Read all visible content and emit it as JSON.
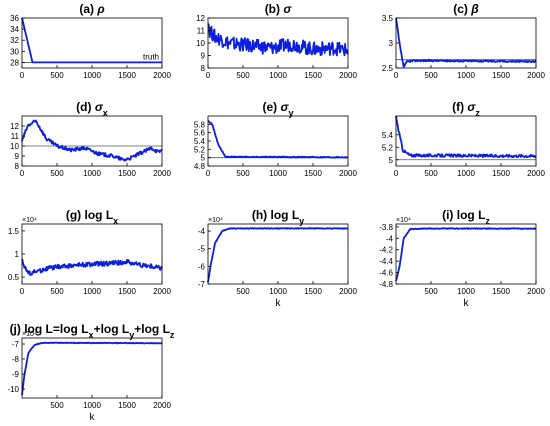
{
  "chart_data": [
    {
      "id": "a",
      "type": "line",
      "title_main": "(a) ",
      "title_symbol": "ρ",
      "title_sub": "",
      "x": [
        0,
        150,
        2000
      ],
      "series": [
        {
          "values": [
            36,
            28,
            28
          ]
        }
      ],
      "xlim": [
        0,
        2000
      ],
      "ylim": [
        27,
        36
      ],
      "xticks": [
        0,
        500,
        1000,
        1500,
        2000
      ],
      "yticks": [
        28,
        30,
        32,
        34,
        36
      ],
      "truth": 28,
      "truth_label": "truth",
      "noise": 0.0,
      "xlabel": "",
      "multiplier": ""
    },
    {
      "id": "b",
      "type": "line",
      "title_main": "(b) ",
      "title_symbol": "σ",
      "title_sub": "",
      "x": [
        0,
        20,
        100,
        300,
        600,
        900,
        1200,
        1500,
        1800,
        2000
      ],
      "series": [
        {
          "values": [
            12,
            11,
            10.5,
            10.0,
            9.8,
            9.6,
            9.9,
            9.5,
            9.6,
            9.4
          ]
        }
      ],
      "xlim": [
        0,
        2000
      ],
      "ylim": [
        8,
        12
      ],
      "xticks": [
        0,
        500,
        1000,
        1500,
        2000
      ],
      "yticks": [
        8,
        9,
        10,
        11,
        12
      ],
      "noise": 0.55,
      "xlabel": "",
      "multiplier": ""
    },
    {
      "id": "c",
      "type": "line",
      "title_main": "(c) ",
      "title_symbol": "β",
      "title_sub": "",
      "x": [
        0,
        60,
        110,
        160,
        300,
        2000
      ],
      "series": [
        {
          "values": [
            3.5,
            2.9,
            2.52,
            2.63,
            2.65,
            2.63
          ]
        }
      ],
      "xlim": [
        0,
        2000
      ],
      "ylim": [
        2.5,
        3.5
      ],
      "xticks": [
        0,
        500,
        1000,
        1500,
        2000
      ],
      "yticks": [
        2.5,
        3,
        3.5
      ],
      "truth": 2.6667,
      "noise": 0.018,
      "xlabel": "",
      "multiplier": ""
    },
    {
      "id": "d",
      "type": "line",
      "title_main": "(d) ",
      "title_symbol": "σ",
      "title_sub": "x",
      "x": [
        0,
        80,
        200,
        350,
        500,
        700,
        900,
        1100,
        1300,
        1450,
        1550,
        1700,
        1850,
        1950,
        2000
      ],
      "series": [
        {
          "values": [
            10.5,
            12,
            12.5,
            10.7,
            10.0,
            9.6,
            9.8,
            9.2,
            9.0,
            8.6,
            8.8,
            9.3,
            9.8,
            9.4,
            9.6
          ]
        }
      ],
      "xlim": [
        0,
        2000
      ],
      "ylim": [
        8,
        13
      ],
      "xticks": [
        0,
        500,
        1000,
        1500,
        2000
      ],
      "yticks": [
        8,
        9,
        10,
        11,
        12
      ],
      "truth": 10,
      "noise": 0.18,
      "xlabel": "",
      "multiplier": ""
    },
    {
      "id": "e",
      "type": "line",
      "title_main": "(e) ",
      "title_symbol": "σ",
      "title_sub": "y",
      "x": [
        0,
        60,
        150,
        250,
        2000
      ],
      "series": [
        {
          "values": [
            5.9,
            5.8,
            5.3,
            5.02,
            5.01
          ]
        }
      ],
      "xlim": [
        0,
        2000
      ],
      "ylim": [
        4.8,
        6.0
      ],
      "xticks": [
        0,
        500,
        1000,
        1500,
        2000
      ],
      "yticks": [
        4.8,
        5,
        5.2,
        5.4,
        5.6,
        5.8
      ],
      "truth": 5,
      "noise": 0.012,
      "xlabel": "",
      "multiplier": ""
    },
    {
      "id": "f",
      "type": "line",
      "title_main": "(f) ",
      "title_symbol": "σ",
      "title_sub": "z",
      "x": [
        0,
        30,
        100,
        200,
        2000
      ],
      "series": [
        {
          "values": [
            5.7,
            5.5,
            5.15,
            5.07,
            5.06
          ]
        }
      ],
      "xlim": [
        0,
        2000
      ],
      "ylim": [
        4.9,
        5.7
      ],
      "xticks": [
        0,
        500,
        1000,
        1500,
        2000
      ],
      "yticks": [
        5,
        5.2,
        5.4
      ],
      "truth": 5,
      "noise": 0.022,
      "xlabel": "",
      "multiplier": ""
    },
    {
      "id": "g",
      "type": "line",
      "title_main": "(g) log L",
      "title_symbol": "",
      "title_sub": "x",
      "x": [
        0,
        40,
        100,
        200,
        400,
        700,
        1000,
        1300,
        1500,
        1700,
        2000
      ],
      "series": [
        {
          "values": [
            0.9,
            0.7,
            0.58,
            0.62,
            0.7,
            0.75,
            0.78,
            0.8,
            0.83,
            0.76,
            0.7
          ]
        }
      ],
      "xlim": [
        0,
        2000
      ],
      "ylim": [
        0.35,
        1.65
      ],
      "xticks": [
        0,
        500,
        1000,
        1500,
        2000
      ],
      "yticks": [
        0.5,
        1,
        1.5
      ],
      "noise": 0.05,
      "xlabel": "",
      "multiplier": "×10⁴"
    },
    {
      "id": "h",
      "type": "line",
      "title_main": "(h) log L",
      "title_symbol": "",
      "title_sub": "y",
      "x": [
        0,
        40,
        100,
        200,
        300,
        2000
      ],
      "series": [
        {
          "values": [
            -6.9,
            -5.9,
            -4.7,
            -4.0,
            -3.85,
            -3.85
          ]
        }
      ],
      "xlim": [
        0,
        2000
      ],
      "ylim": [
        -7,
        -3.6
      ],
      "xticks": [
        500,
        1000,
        1500,
        2000
      ],
      "yticks": [
        -7,
        -6,
        -5,
        -4
      ],
      "noise": 0.02,
      "xlabel": "k",
      "multiplier": "×10⁴"
    },
    {
      "id": "i",
      "type": "line",
      "title_main": "(i) log L",
      "title_symbol": "",
      "title_sub": "z",
      "x": [
        0,
        50,
        110,
        200,
        400,
        2000
      ],
      "series": [
        {
          "values": [
            -4.75,
            -4.5,
            -4.0,
            -3.84,
            -3.83,
            -3.83
          ]
        }
      ],
      "xlim": [
        0,
        2000
      ],
      "ylim": [
        -4.8,
        -3.75
      ],
      "xticks": [
        500,
        1000,
        1500,
        2000
      ],
      "yticks": [
        -4.8,
        -4.6,
        -4.4,
        -4.2,
        -4,
        -3.8
      ],
      "noise": 0.007,
      "xlabel": "k",
      "multiplier": "×10⁴"
    },
    {
      "id": "j",
      "type": "line",
      "title_main": "(j) log L=log L",
      "title_symbol": "",
      "title_sub": "x",
      "title_rest": [
        {
          "t": "+log L",
          "s": "y"
        },
        {
          "t": "+log L",
          "s": "z"
        }
      ],
      "x": [
        0,
        30,
        90,
        180,
        300,
        2000
      ],
      "series": [
        {
          "values": [
            -10.4,
            -9.2,
            -7.6,
            -7.05,
            -6.92,
            -6.95
          ]
        }
      ],
      "xlim": [
        0,
        2000
      ],
      "ylim": [
        -10.6,
        -6.6
      ],
      "xticks": [
        500,
        1000,
        1500,
        2000
      ],
      "yticks": [
        -10,
        -9,
        -8,
        -7
      ],
      "noise": 0.02,
      "xlabel": "k",
      "multiplier": "×10⁴"
    }
  ]
}
